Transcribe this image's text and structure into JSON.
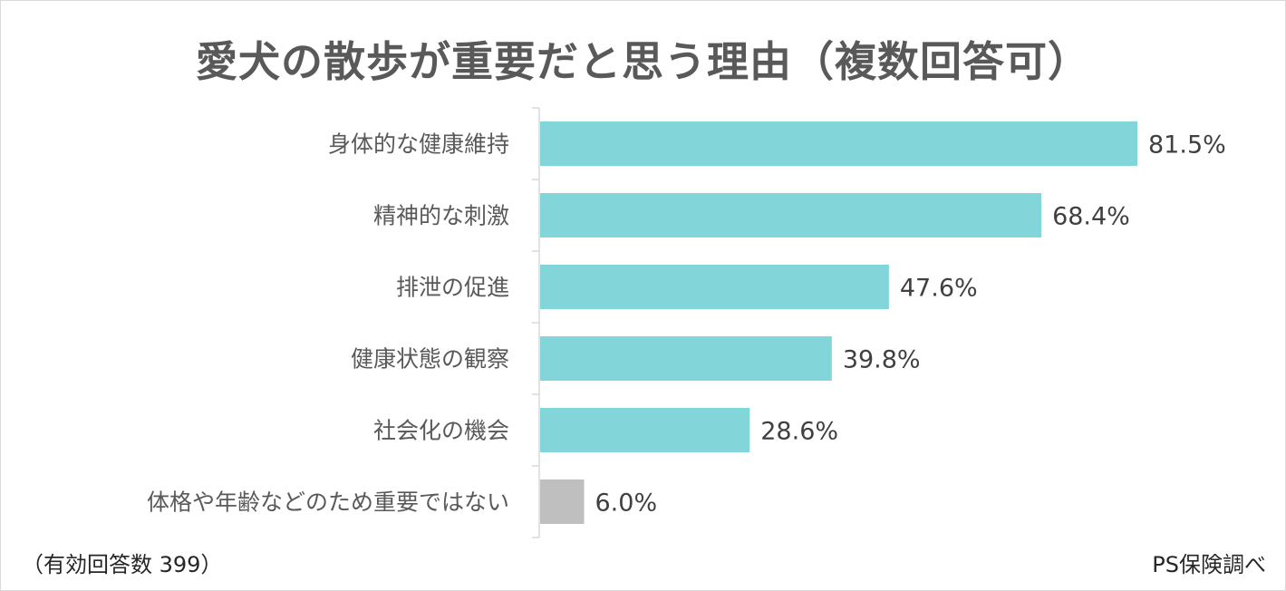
{
  "chart_data": {
    "type": "bar",
    "orientation": "horizontal",
    "title": "愛犬の散歩が重要だと思う理由（複数回答可）",
    "categories": [
      "身体的な健康維持",
      "精神的な刺激",
      "排泄の促進",
      "健康状態の観察",
      "社会化の機会",
      "体格や年齢などのため重要ではない"
    ],
    "values": [
      81.5,
      68.4,
      47.6,
      39.8,
      28.6,
      6.0
    ],
    "value_labels": [
      "81.5%",
      "68.4%",
      "47.6%",
      "39.8%",
      "28.6%",
      "6.0%"
    ],
    "unit": "%",
    "xlim": [
      0,
      100
    ],
    "grid": false,
    "legend": "none",
    "colors": {
      "main": "#82d6da",
      "negative": "#bfbfbf",
      "axis": "#d9d9d9"
    },
    "footnote": "（有効回答数 399）",
    "source": "PS保険調べ"
  }
}
